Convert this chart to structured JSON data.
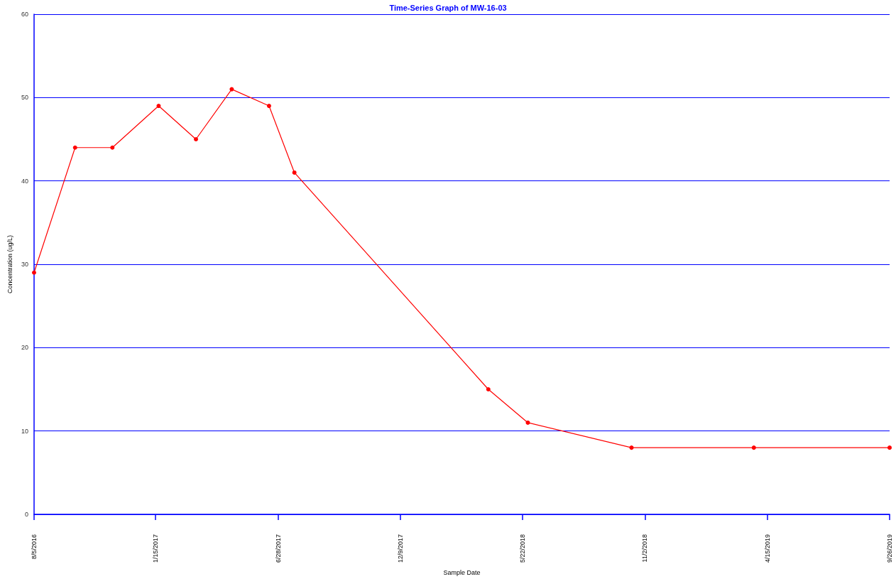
{
  "chart_data": {
    "type": "line",
    "title": "Time-Series Graph of MW-16-03",
    "xlabel": "Sample Date",
    "ylabel": "Concentration (ug/L)",
    "x": [
      "2016-08-05",
      "2016-09-29",
      "2016-11-18",
      "2017-01-19",
      "2017-03-10",
      "2017-04-27",
      "2017-06-16",
      "2017-07-20",
      "2018-04-06",
      "2018-05-29",
      "2018-10-15",
      "2019-03-28",
      "2019-09-26"
    ],
    "series": [
      {
        "color": "#ff0000",
        "values": [
          29,
          44,
          44,
          49,
          45,
          51,
          49,
          41,
          15,
          11,
          8,
          8,
          8
        ]
      }
    ],
    "xlim": [
      "2016-08-05",
      "2019-09-26"
    ],
    "xticks": [
      {
        "value": "2016-08-05",
        "label": "8/5/2016"
      },
      {
        "value": "2017-01-15",
        "label": "1/15/2017"
      },
      {
        "value": "2017-06-28",
        "label": "6/28/2017"
      },
      {
        "value": "2017-12-09",
        "label": "12/9/2017"
      },
      {
        "value": "2018-05-22",
        "label": "5/22/2018"
      },
      {
        "value": "2018-11-02",
        "label": "11/2/2018"
      },
      {
        "value": "2019-04-15",
        "label": "4/15/2019"
      },
      {
        "value": "2019-09-26",
        "label": "9/26/2019"
      }
    ],
    "ylim": [
      0,
      60
    ],
    "yticks": [
      0,
      10,
      20,
      30,
      40,
      50,
      60
    ],
    "grid": "y",
    "marker": "circle",
    "line_style": "solid"
  }
}
